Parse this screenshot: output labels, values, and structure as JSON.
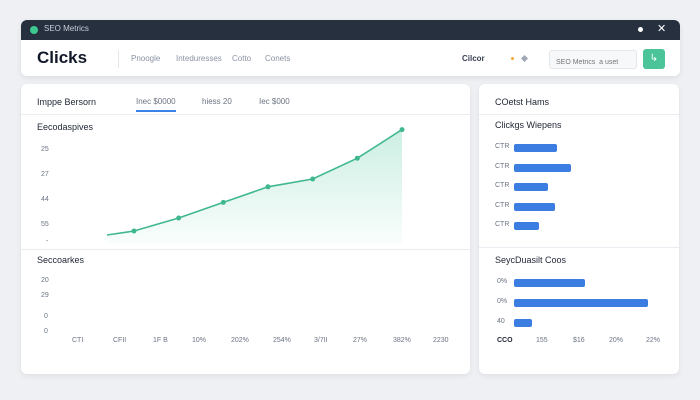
{
  "window": {
    "title": "SEO Metrics"
  },
  "header": {
    "page_title": "Clicks",
    "tabs": [
      "Pnoogle",
      "Inteduresses",
      "Cotto",
      "Conets"
    ],
    "metric_label": "Cilcor",
    "search_placeholder": "SEO Metrics  a uset",
    "go_icon": "arrow-icon"
  },
  "left_card": {
    "title": "Imppe Bersorn",
    "tabs": [
      "Inec $0000",
      "hiess 20",
      "Iec $000"
    ],
    "chart_title": "Eecodaspives",
    "y_ticks": [
      "25",
      "27",
      "44",
      "55",
      "-"
    ],
    "section2_title": "Seccoarkes",
    "y_ticks2": [
      "20",
      "29",
      "0",
      "0"
    ],
    "x_labels": [
      "CTI",
      "CFII",
      "1F B",
      "10%",
      "202%",
      "254%",
      "3/7II",
      "27%",
      "382%",
      "2230"
    ]
  },
  "right_card": {
    "title": "COetst Hams",
    "section1_title": "Clickgs Wiepens",
    "bars1_labels": [
      "CTR",
      "CTR",
      "CTR",
      "CTR",
      "CTR"
    ],
    "section2_title": "SeycDuasilt Coos",
    "bars2_labels": [
      "0%",
      "0%",
      "40"
    ],
    "x_labels": [
      "CCO",
      "155",
      "$16",
      "20%",
      "22%"
    ]
  },
  "chart_data": [
    {
      "type": "area",
      "x": [
        1,
        2,
        3,
        4,
        5,
        6,
        7
      ],
      "series": [
        {
          "values": [
            5,
            10,
            16,
            22,
            25,
            33,
            44
          ]
        }
      ],
      "ylim": [
        0,
        50
      ],
      "grid": false
    },
    {
      "type": "bar",
      "orientation": "horizontal",
      "categories": [
        "CTR",
        "CTR",
        "CTR",
        "CTR",
        "CTR"
      ],
      "values": [
        4,
        5.3,
        3.2,
        3.8,
        2.3
      ],
      "xlim": [
        0,
        15
      ],
      "color": "#3b7de0"
    },
    {
      "type": "bar",
      "orientation": "horizontal",
      "categories": [
        "0%",
        "0%",
        "40"
      ],
      "values": [
        6.7,
        12.6,
        1.7
      ],
      "xlim": [
        0,
        15
      ],
      "color": "#3b7de0"
    }
  ]
}
